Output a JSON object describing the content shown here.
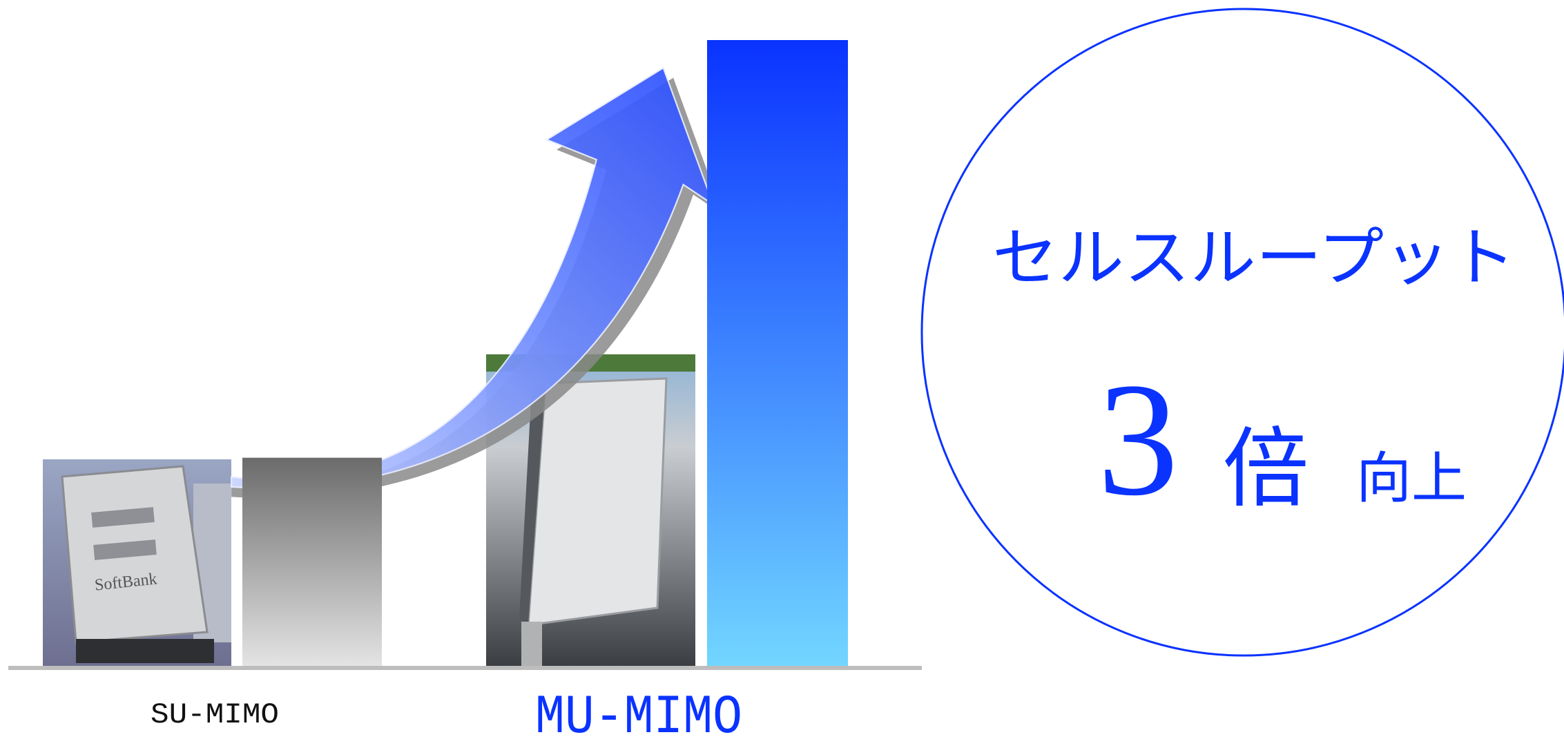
{
  "chart_data": {
    "type": "bar",
    "categories": [
      "SU-MIMO",
      "MU-MIMO"
    ],
    "values": [
      1,
      3
    ],
    "colors": [
      "#6b6b6b",
      "#0a33ff"
    ],
    "ylim": [
      0,
      3
    ],
    "annotation": {
      "label": "セルスループット",
      "multiple": "3",
      "unit": "倍",
      "suffix": "向上"
    }
  }
}
